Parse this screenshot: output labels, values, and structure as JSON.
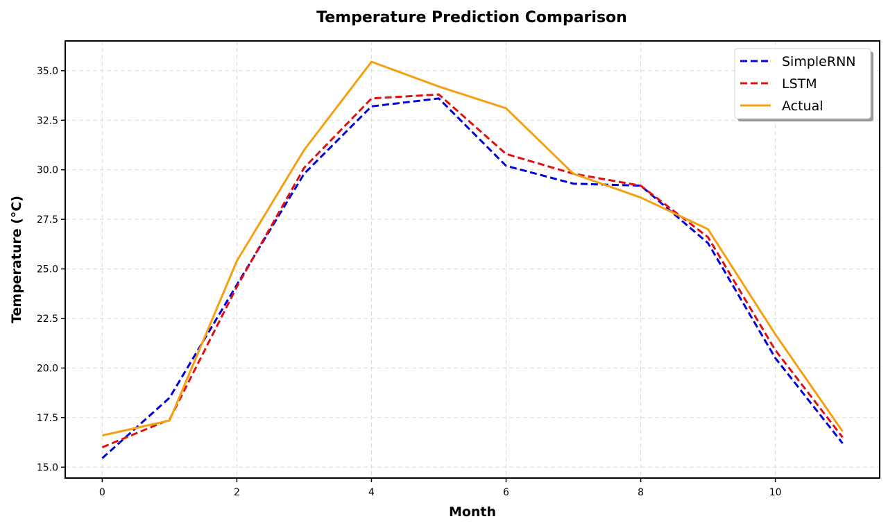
{
  "chart_data": {
    "type": "line",
    "title": "Temperature Prediction Comparison",
    "xlabel": "Month",
    "ylabel": "Temperature (°C)",
    "x": [
      0,
      1,
      2,
      3,
      4,
      5,
      6,
      7,
      8,
      9,
      10,
      11
    ],
    "xlim": [
      -0.55,
      11.55
    ],
    "ylim": [
      14.45,
      36.5
    ],
    "xticks": [
      0,
      2,
      4,
      6,
      8,
      10
    ],
    "yticks": [
      15.0,
      17.5,
      20.0,
      22.5,
      25.0,
      27.5,
      30.0,
      32.5,
      35.0
    ],
    "grid": true,
    "legend_position": "top-right",
    "series": [
      {
        "name": "SimpleRNN",
        "color": "#0000dd",
        "style": "dashed",
        "values": [
          15.45,
          18.5,
          24.2,
          29.8,
          33.2,
          33.6,
          30.2,
          29.3,
          29.2,
          26.3,
          20.5,
          16.2
        ]
      },
      {
        "name": "LSTM",
        "color": "#e01010",
        "style": "dashed",
        "values": [
          16.0,
          17.4,
          24.1,
          30.1,
          33.6,
          33.8,
          30.8,
          29.8,
          29.2,
          26.6,
          20.9,
          16.5
        ]
      },
      {
        "name": "Actual",
        "color": "#f5a010",
        "style": "solid",
        "values": [
          16.6,
          17.35,
          25.4,
          31.0,
          35.45,
          34.2,
          33.1,
          29.8,
          28.6,
          27.0,
          21.7,
          16.8
        ]
      }
    ]
  }
}
